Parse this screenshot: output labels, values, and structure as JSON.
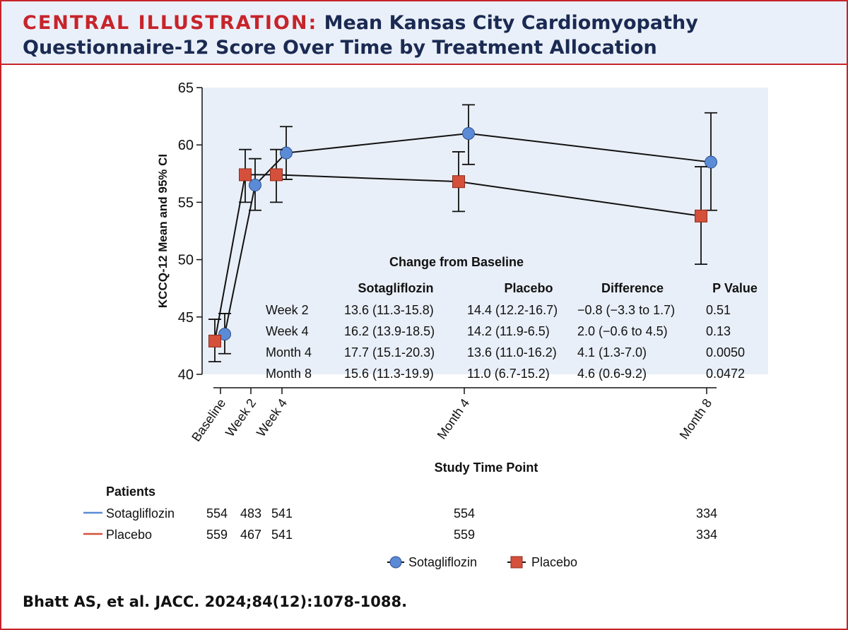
{
  "header": {
    "kicker": "CENTRAL ILLUSTRATION:",
    "title_line1": "Mean Kansas City Cardiomyopathy",
    "title_line2": "Questionnaire-12 Score Over Time by Treatment Allocation"
  },
  "colors": {
    "accent_red": "#c7242b",
    "title_navy": "#1a2a52",
    "plot_bg": "#e9eff8",
    "sotagliflozin": "#5b8bd6",
    "placebo": "#d4503b"
  },
  "chart_data": {
    "type": "line",
    "title": "Mean Kansas City Cardiomyopathy Questionnaire-12 Score Over Time by Treatment Allocation",
    "xlabel": "Study Time Point",
    "ylabel": "KCCQ-12 Mean and 95% CI",
    "ylim": [
      40,
      65
    ],
    "yticks": [
      40,
      45,
      50,
      55,
      60,
      65
    ],
    "categories": [
      "Baseline",
      "Week 2",
      "Week 4",
      "Month 4",
      "Month 8"
    ],
    "x_weeks": [
      0,
      2,
      4,
      16,
      32
    ],
    "series": [
      {
        "name": "Sotagliflozin",
        "marker": "circle",
        "values": [
          43.5,
          56.5,
          59.3,
          61.0,
          58.5
        ],
        "ci_low": [
          41.8,
          54.3,
          57.0,
          58.3,
          54.3
        ],
        "ci_high": [
          45.3,
          58.8,
          61.6,
          63.5,
          62.8
        ]
      },
      {
        "name": "Placebo",
        "marker": "square",
        "values": [
          42.9,
          57.4,
          57.4,
          56.8,
          53.8
        ],
        "ci_low": [
          41.1,
          55.0,
          55.0,
          54.2,
          49.6
        ],
        "ci_high": [
          44.8,
          59.6,
          59.6,
          59.4,
          58.1
        ]
      }
    ],
    "change_table": {
      "title": "Change from Baseline",
      "headers": [
        "",
        "Sotagliflozin",
        "Placebo",
        "Difference",
        "P Value"
      ],
      "rows": [
        [
          "Week 2",
          "13.6 (11.3-15.8)",
          "14.4 (12.2-16.7)",
          "−0.8 (−3.3 to 1.7)",
          "0.51"
        ],
        [
          "Week 4",
          "16.2 (13.9-18.5)",
          "14.2 (11.9-6.5)",
          "2.0 (−0.6 to 4.5)",
          "0.13"
        ],
        [
          "Month 4",
          "17.7 (15.1-20.3)",
          "13.6 (11.0-16.2)",
          "4.1 (1.3-7.0)",
          "0.0050"
        ],
        [
          "Month 8",
          "15.6 (11.3-19.9)",
          "11.0 (6.7-15.2)",
          "4.6 (0.6-9.2)",
          "0.0472"
        ]
      ]
    },
    "patients": {
      "title": "Patients",
      "rows": [
        {
          "label": "Sotagliflozin",
          "counts": [
            "554",
            "483",
            "541",
            "554",
            "334"
          ]
        },
        {
          "label": "Placebo",
          "counts": [
            "559",
            "467",
            "541",
            "559",
            "334"
          ]
        }
      ]
    },
    "legend": [
      "Sotagliflozin",
      "Placebo"
    ]
  },
  "footer": {
    "citation": "Bhatt AS, et al. JACC. 2024;84(12):1078-1088."
  }
}
